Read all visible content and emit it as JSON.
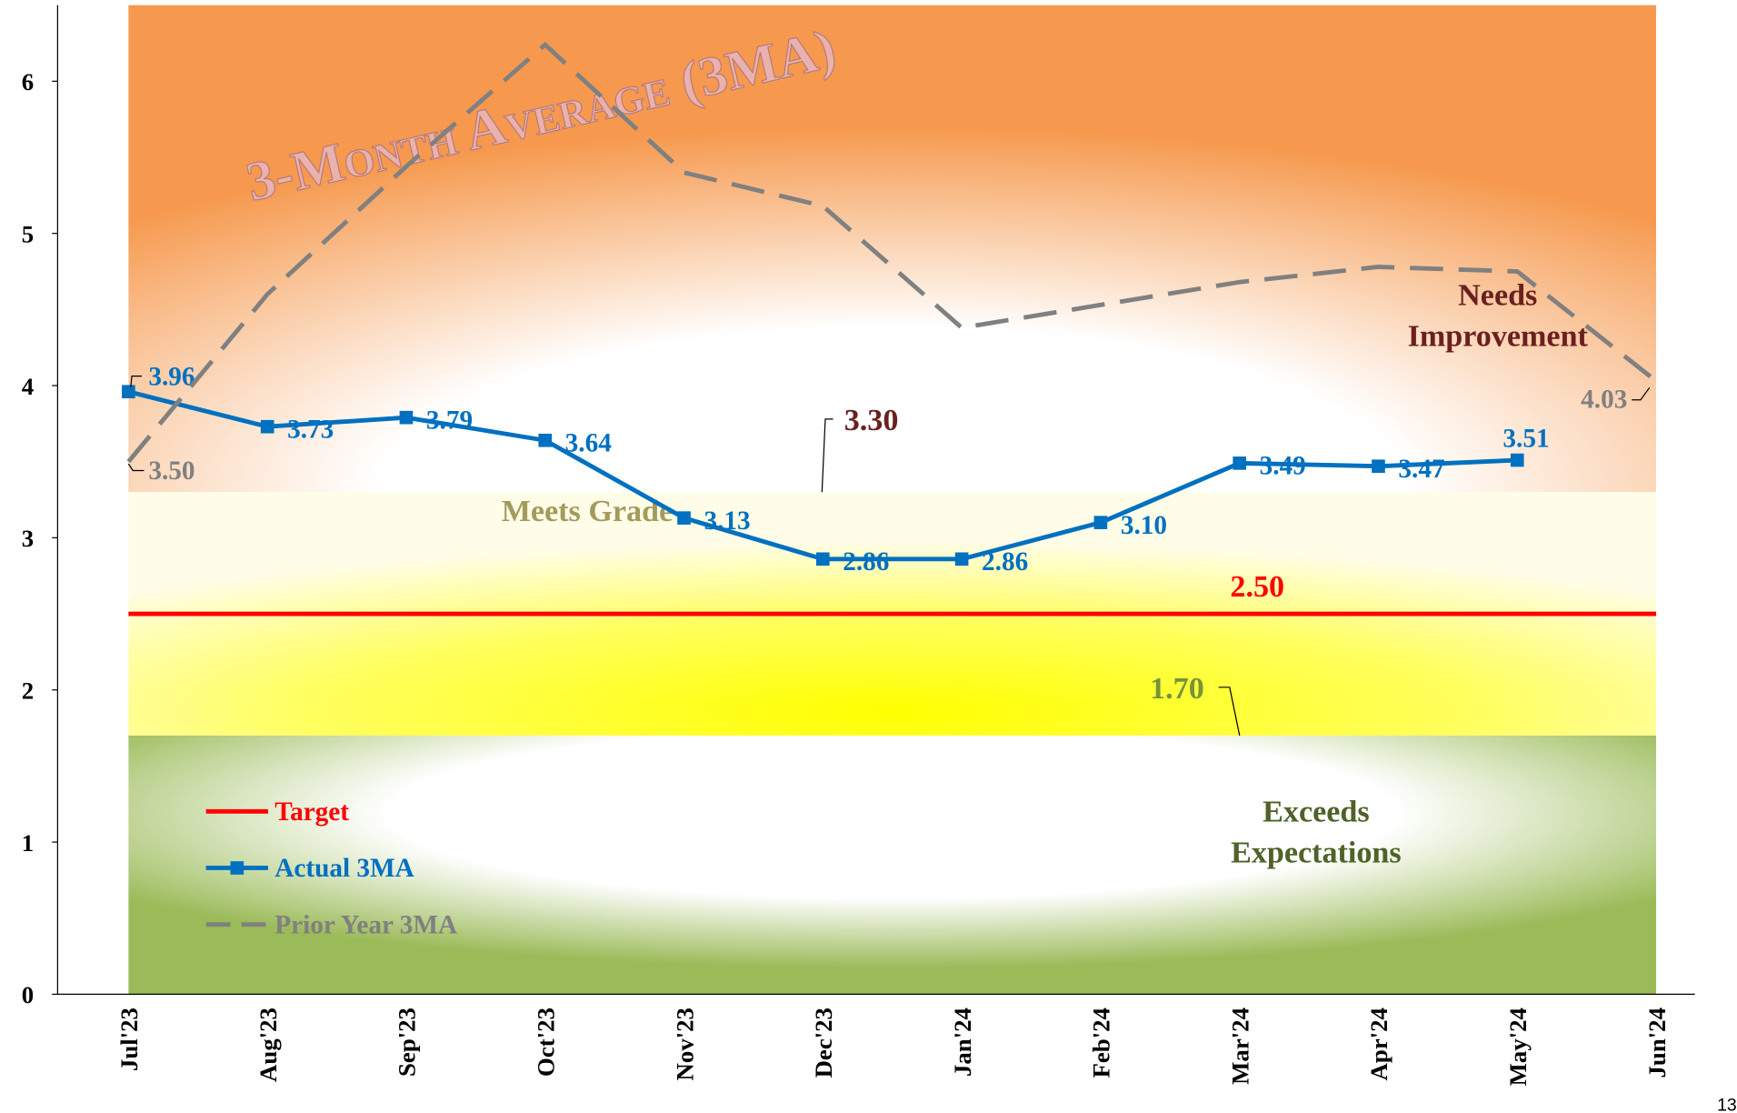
{
  "chart_data": {
    "type": "line",
    "title": "3-Month Average (3MA)",
    "categories": [
      "Jul'23",
      "Aug'23",
      "Sep'23",
      "Oct'23",
      "Nov'23",
      "Dec'23",
      "Jan'24",
      "Feb'24",
      "Mar'24",
      "Apr'24",
      "May'24",
      "Jun'24"
    ],
    "series": [
      {
        "name": "Actual 3MA",
        "color": "#0070c0",
        "style": "solid",
        "marker": "square",
        "values": [
          3.96,
          3.73,
          3.79,
          3.64,
          3.13,
          2.86,
          2.86,
          3.1,
          3.49,
          3.47,
          3.51,
          null
        ],
        "value_labels": [
          "3.96",
          "3.73",
          "3.79",
          "3.64",
          "3.13",
          "2.86",
          "2.86",
          "3.10",
          "3.49",
          "3.47",
          "3.51",
          null
        ]
      },
      {
        "name": "Prior Year 3MA",
        "color": "#808080",
        "style": "dashed",
        "values": [
          3.5,
          4.6,
          5.44,
          6.24,
          5.4,
          5.18,
          4.38,
          4.53,
          4.68,
          4.78,
          4.75,
          4.03
        ],
        "value_labels": [
          "3.50",
          null,
          null,
          null,
          null,
          null,
          null,
          null,
          null,
          null,
          null,
          "4.03"
        ]
      }
    ],
    "target": {
      "name": "Target",
      "color": "#ff0000",
      "value": 2.5,
      "label": "2.50"
    },
    "upper_threshold": {
      "value": 3.3,
      "label": "3.30"
    },
    "lower_threshold": {
      "value": 1.7,
      "label": "1.70"
    },
    "band_labels": {
      "needs": [
        "Needs",
        "Improvement"
      ],
      "meets": [
        "Meets Grade"
      ],
      "exceeds": [
        "Exceeds",
        "Expectations"
      ]
    },
    "ylim": [
      0,
      6.5
    ],
    "yticks": [
      0,
      1,
      2,
      3,
      4,
      5,
      6
    ],
    "legend": "bottom-left",
    "page_number": "13"
  }
}
